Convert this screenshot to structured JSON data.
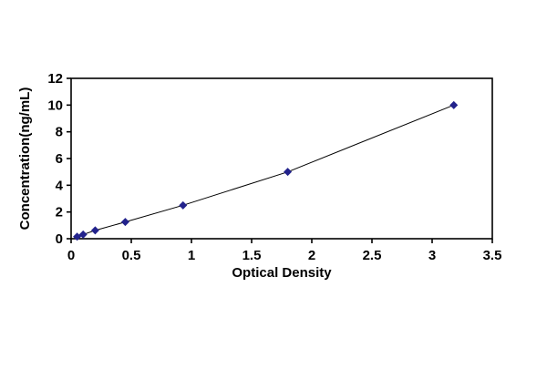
{
  "chart_data": {
    "type": "line",
    "title": "",
    "xlabel": "Optical Density",
    "ylabel": "Concentration(ng/mL)",
    "x": [
      0.05,
      0.1,
      0.2,
      0.45,
      0.93,
      1.8,
      3.18
    ],
    "y": [
      0.156,
      0.312,
      0.625,
      1.25,
      2.5,
      5.0,
      10.0
    ],
    "xlim": [
      0,
      3.5
    ],
    "ylim": [
      0,
      12
    ],
    "x_ticks": [
      0,
      0.5,
      1,
      1.5,
      2,
      2.5,
      3,
      3.5
    ],
    "x_tick_labels": [
      "0",
      "0.5",
      "1",
      "1.5",
      "2",
      "2.5",
      "3",
      "3.5"
    ],
    "y_ticks": [
      0,
      2,
      4,
      6,
      8,
      10,
      12
    ],
    "y_tick_labels": [
      "0",
      "2",
      "4",
      "6",
      "8",
      "10",
      "12"
    ],
    "marker": "diamond",
    "marker_color": "#22228C",
    "line_color": "#000000",
    "frame_color": "#000000",
    "grid": false,
    "legend": false
  }
}
